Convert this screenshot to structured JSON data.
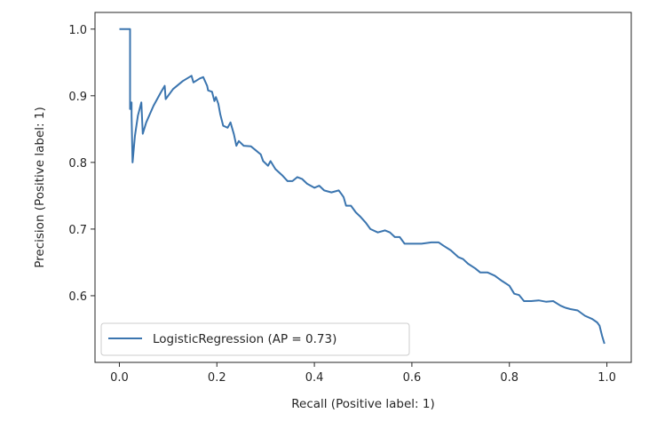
{
  "chart_data": {
    "type": "line",
    "title": "",
    "xlabel": "Recall (Positive label: 1)",
    "ylabel": "Precision (Positive label: 1)",
    "xlim": [
      -0.05,
      1.05
    ],
    "ylim": [
      0.5,
      1.025
    ],
    "xticks": [
      0.0,
      0.2,
      0.4,
      0.6,
      0.8,
      1.0
    ],
    "xtick_labels": [
      "0.0",
      "0.2",
      "0.4",
      "0.6",
      "0.8",
      "1.0"
    ],
    "yticks": [
      0.6,
      0.7,
      0.8,
      0.9,
      1.0
    ],
    "ytick_labels": [
      "0.6",
      "0.7",
      "0.8",
      "0.9",
      "1.0"
    ],
    "grid": false,
    "legend_position": "lower-left",
    "series": [
      {
        "name": "LogisticRegression (AP = 0.73)",
        "color": "#3b75af",
        "points": [
          [
            0.0,
            1.0
          ],
          [
            0.022,
            1.0
          ],
          [
            0.022,
            0.88
          ],
          [
            0.025,
            0.89
          ],
          [
            0.025,
            0.87
          ],
          [
            0.027,
            0.8
          ],
          [
            0.032,
            0.84
          ],
          [
            0.038,
            0.87
          ],
          [
            0.045,
            0.89
          ],
          [
            0.048,
            0.843
          ],
          [
            0.055,
            0.86
          ],
          [
            0.07,
            0.885
          ],
          [
            0.085,
            0.905
          ],
          [
            0.093,
            0.915
          ],
          [
            0.095,
            0.895
          ],
          [
            0.11,
            0.91
          ],
          [
            0.13,
            0.922
          ],
          [
            0.148,
            0.93
          ],
          [
            0.152,
            0.92
          ],
          [
            0.165,
            0.926
          ],
          [
            0.172,
            0.928
          ],
          [
            0.18,
            0.915
          ],
          [
            0.182,
            0.908
          ],
          [
            0.19,
            0.906
          ],
          [
            0.195,
            0.892
          ],
          [
            0.198,
            0.898
          ],
          [
            0.203,
            0.888
          ],
          [
            0.207,
            0.872
          ],
          [
            0.213,
            0.855
          ],
          [
            0.222,
            0.852
          ],
          [
            0.228,
            0.86
          ],
          [
            0.235,
            0.842
          ],
          [
            0.24,
            0.825
          ],
          [
            0.245,
            0.832
          ],
          [
            0.255,
            0.825
          ],
          [
            0.27,
            0.824
          ],
          [
            0.28,
            0.818
          ],
          [
            0.29,
            0.812
          ],
          [
            0.295,
            0.802
          ],
          [
            0.305,
            0.795
          ],
          [
            0.31,
            0.802
          ],
          [
            0.32,
            0.79
          ],
          [
            0.335,
            0.78
          ],
          [
            0.345,
            0.772
          ],
          [
            0.355,
            0.772
          ],
          [
            0.365,
            0.778
          ],
          [
            0.375,
            0.775
          ],
          [
            0.385,
            0.768
          ],
          [
            0.4,
            0.762
          ],
          [
            0.41,
            0.765
          ],
          [
            0.42,
            0.758
          ],
          [
            0.435,
            0.755
          ],
          [
            0.45,
            0.758
          ],
          [
            0.455,
            0.753
          ],
          [
            0.46,
            0.748
          ],
          [
            0.465,
            0.735
          ],
          [
            0.475,
            0.735
          ],
          [
            0.485,
            0.725
          ],
          [
            0.495,
            0.718
          ],
          [
            0.505,
            0.71
          ],
          [
            0.515,
            0.7
          ],
          [
            0.53,
            0.695
          ],
          [
            0.545,
            0.698
          ],
          [
            0.555,
            0.695
          ],
          [
            0.565,
            0.688
          ],
          [
            0.575,
            0.688
          ],
          [
            0.585,
            0.678
          ],
          [
            0.6,
            0.678
          ],
          [
            0.62,
            0.678
          ],
          [
            0.64,
            0.68
          ],
          [
            0.655,
            0.68
          ],
          [
            0.665,
            0.675
          ],
          [
            0.68,
            0.668
          ],
          [
            0.695,
            0.658
          ],
          [
            0.705,
            0.655
          ],
          [
            0.715,
            0.648
          ],
          [
            0.73,
            0.641
          ],
          [
            0.74,
            0.635
          ],
          [
            0.755,
            0.635
          ],
          [
            0.77,
            0.63
          ],
          [
            0.785,
            0.622
          ],
          [
            0.8,
            0.615
          ],
          [
            0.81,
            0.603
          ],
          [
            0.82,
            0.601
          ],
          [
            0.83,
            0.592
          ],
          [
            0.845,
            0.592
          ],
          [
            0.86,
            0.593
          ],
          [
            0.875,
            0.591
          ],
          [
            0.89,
            0.592
          ],
          [
            0.905,
            0.585
          ],
          [
            0.915,
            0.582
          ],
          [
            0.925,
            0.58
          ],
          [
            0.94,
            0.578
          ],
          [
            0.955,
            0.57
          ],
          [
            0.97,
            0.565
          ],
          [
            0.98,
            0.56
          ],
          [
            0.985,
            0.555
          ],
          [
            0.99,
            0.54
          ],
          [
            0.995,
            0.528
          ]
        ]
      }
    ]
  }
}
